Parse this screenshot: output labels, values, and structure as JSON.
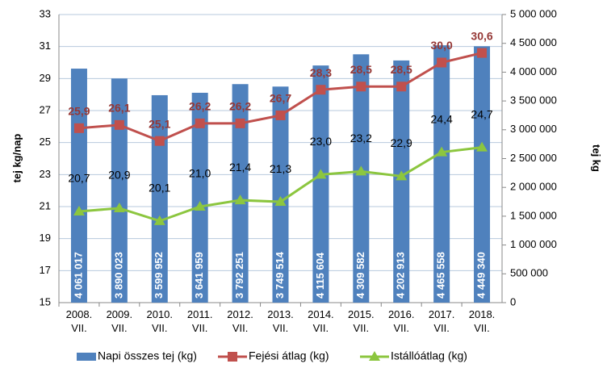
{
  "chart_data": {
    "type": "bar_line",
    "categories": [
      "2008. VII.",
      "2009. VII.",
      "2010. VII.",
      "2011. VII.",
      "2012. VII.",
      "2013. VII.",
      "2014. VII.",
      "2015. VII.",
      "2016. VII.",
      "2017. VII.",
      "2018. VII."
    ],
    "y_label": "tej kg/nap",
    "y2_label": "tej kg",
    "ylim": [
      15,
      33
    ],
    "yticks": [
      15,
      17,
      19,
      21,
      23,
      25,
      27,
      29,
      31,
      33
    ],
    "y2lim": [
      0,
      5000000
    ],
    "y2ticks": [
      0,
      {
        "value": 500000,
        "label": "500 000"
      },
      {
        "value": 1000000,
        "label": "1 000 000"
      },
      {
        "value": 1500000,
        "label": "1 500 000"
      },
      {
        "value": 2000000,
        "label": "2 000 000"
      },
      {
        "value": 2500000,
        "label": "2 500 000"
      },
      {
        "value": 3000000,
        "label": "3 000 000"
      },
      {
        "value": 3500000,
        "label": "3 500 000"
      },
      {
        "value": 4000000,
        "label": "4 000 000"
      },
      {
        "value": 4500000,
        "label": "4 500 000"
      },
      {
        "value": 5000000,
        "label": "5 000 000"
      }
    ],
    "grid": true,
    "series": [
      {
        "name": "Napi összes tej (kg)",
        "type": "bar",
        "axis": "y2",
        "color": "#4f81bd",
        "values": [
          4061017,
          3890023,
          3599952,
          3641959,
          3792251,
          3749514,
          4115604,
          4309582,
          4202913,
          4465558,
          4449340
        ],
        "value_labels": [
          "4 061 017",
          "3 890 023",
          "3 599 952",
          "3 641 959",
          "3 792 251",
          "3 749 514",
          "4 115 604",
          "4 309 582",
          "4 202 913",
          "4 465 558",
          "4 449 340"
        ]
      },
      {
        "name": "Fejési átlag (kg)",
        "type": "line",
        "color": "#c0504d",
        "values": [
          25.9,
          26.1,
          25.1,
          26.2,
          26.2,
          26.7,
          28.3,
          28.5,
          28.5,
          30.0,
          30.6
        ],
        "value_labels": [
          "25,9",
          "26,1",
          "25,1",
          "26,2",
          "26,2",
          "26,7",
          "28,3",
          "28,5",
          "28,5",
          "30,0",
          "30,6"
        ]
      },
      {
        "name": "Istállóátlag (kg)",
        "type": "line",
        "color": "#8cc63f",
        "values": [
          20.7,
          20.9,
          20.1,
          21.0,
          21.4,
          21.3,
          23.0,
          23.2,
          22.9,
          24.4,
          24.7
        ],
        "value_labels": [
          "20,7",
          "20,9",
          "20,1",
          "21,0",
          "21,4",
          "21,3",
          "23,0",
          "23,2",
          "22,9",
          "24,4",
          "24,7"
        ]
      }
    ]
  }
}
